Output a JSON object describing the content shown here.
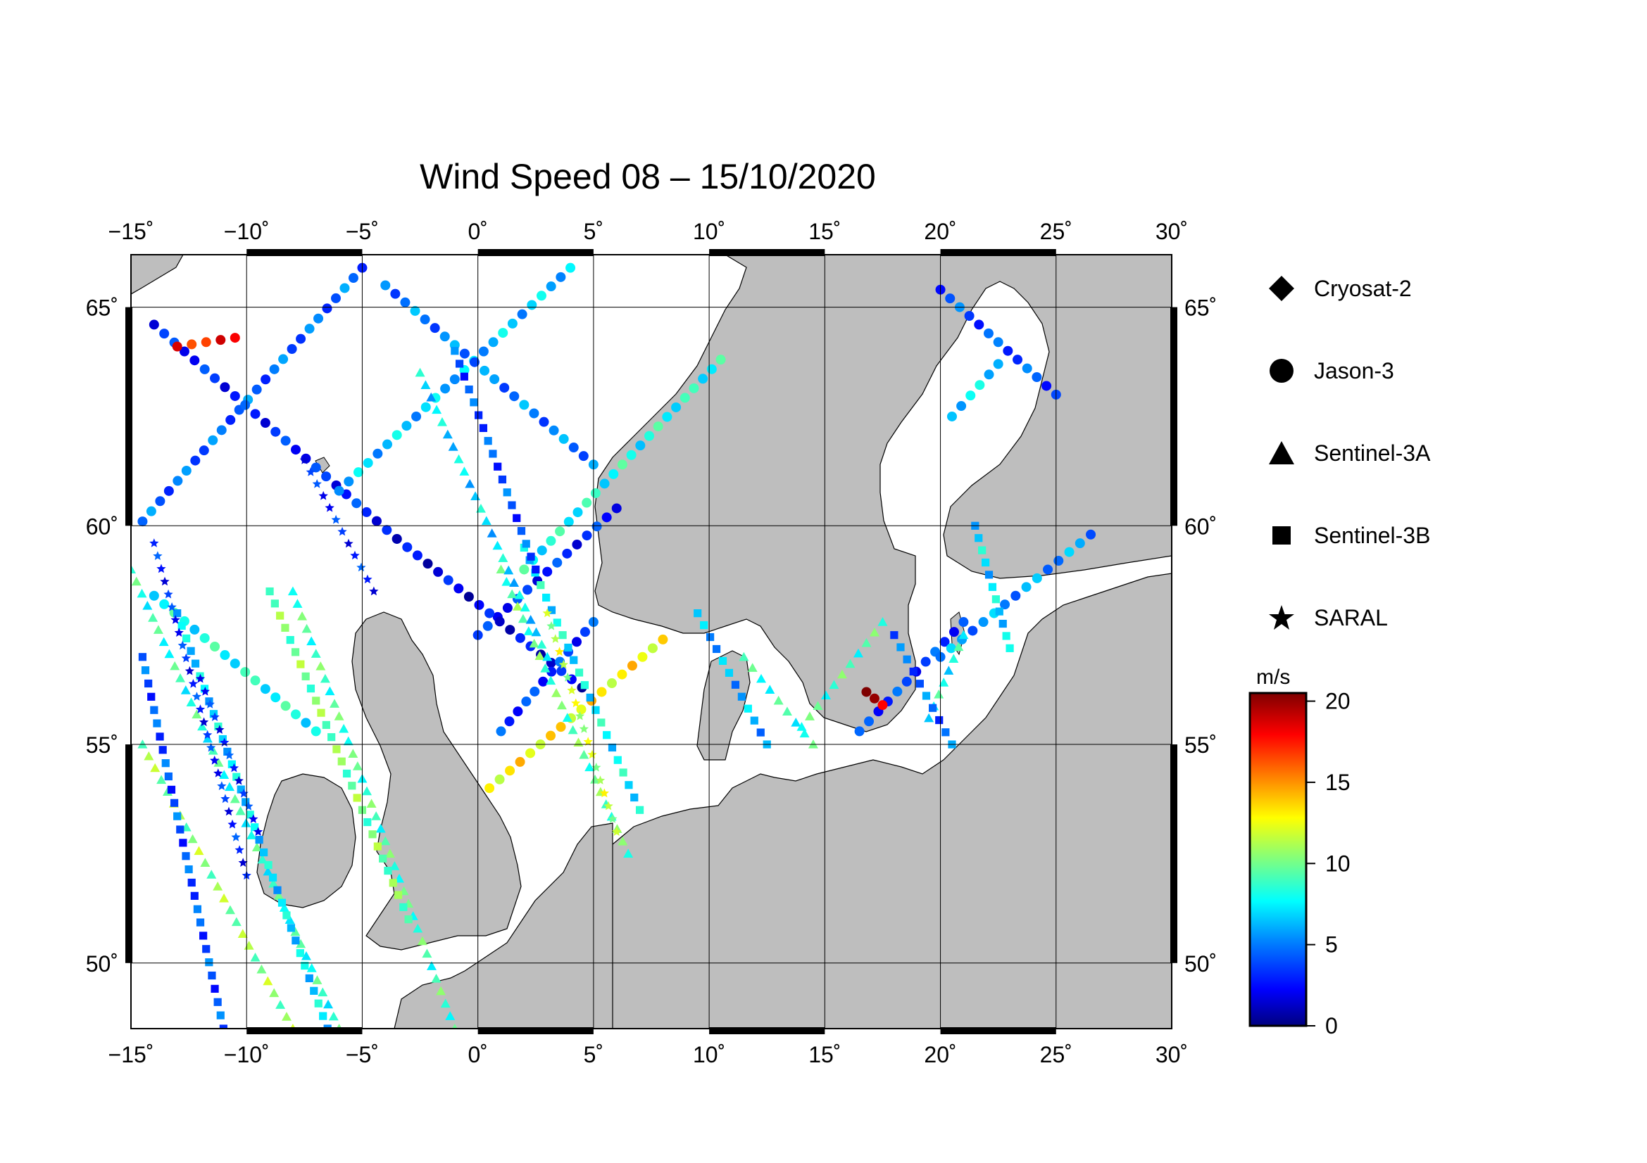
{
  "title": "Wind Speed 08 – 15/10/2020",
  "map": {
    "lon_range": [
      -15,
      30
    ],
    "lat_range": [
      48.5,
      66.2
    ],
    "lon_ticks": [
      "−15˚",
      "−10˚",
      "−5˚",
      "0˚",
      "5˚",
      "10˚",
      "15˚",
      "20˚",
      "25˚",
      "30˚"
    ],
    "lat_ticks_left": [
      "50˚",
      "55˚",
      "60˚",
      "65˚"
    ],
    "lat_ticks_right": [
      "50˚",
      "55˚",
      "60˚",
      "65˚"
    ],
    "land_color": "#bebebe",
    "sea_color": "#ffffff"
  },
  "legend": {
    "items": [
      {
        "label": "Cryosat-2",
        "symbol": "diamond-icon"
      },
      {
        "label": "Jason-3",
        "symbol": "circle-icon"
      },
      {
        "label": "Sentinel-3A",
        "symbol": "triangle-icon"
      },
      {
        "label": "Sentinel-3B",
        "symbol": "square-icon"
      },
      {
        "label": "SARAL",
        "symbol": "star-icon"
      }
    ]
  },
  "colorbar": {
    "unit": "m/s",
    "ticks": [
      "0",
      "5",
      "10",
      "15",
      "20"
    ],
    "range": [
      0,
      20.5
    ],
    "colors": [
      "#00007f",
      "#0000ff",
      "#007fff",
      "#00ffff",
      "#7fff7f",
      "#ffff00",
      "#ff7f00",
      "#ff0000",
      "#7f0000"
    ]
  },
  "chart_data": {
    "type": "scatter",
    "title": "Wind Speed 08 – 15/10/2020",
    "xlabel": "",
    "ylabel": "",
    "xlim": [
      -15,
      30
    ],
    "ylim": [
      48.5,
      66.2
    ],
    "series": [
      {
        "name": "Jason-3",
        "tracks": [
          {
            "start": [
              -14.5,
              60.1
            ],
            "end": [
              -5.0,
              65.9
            ],
            "speed": 4.5
          },
          {
            "start": [
              -14.0,
              64.6
            ],
            "end": [
              -3.5,
              59.7
            ],
            "speed": 3.0
          },
          {
            "start": [
              -6.0,
              60.8
            ],
            "end": [
              4.0,
              65.9
            ],
            "speed": 6.5
          },
          {
            "start": [
              -4.0,
              65.5
            ],
            "end": [
              5.0,
              61.4
            ],
            "speed": 5.0
          },
          {
            "start": [
              2.0,
              59.0
            ],
            "end": [
              10.5,
              63.8
            ],
            "speed": 8.0
          },
          {
            "start": [
              0.0,
              57.5
            ],
            "end": [
              6.0,
              60.4
            ],
            "speed": 3.0
          },
          {
            "start": [
              -3.5,
              59.7
            ],
            "end": [
              4.5,
              56.3
            ],
            "speed": 2.0
          },
          {
            "start": [
              -14.0,
              58.4
            ],
            "end": [
              -7.0,
              55.3
            ],
            "speed": 8.0
          },
          {
            "start": [
              0.5,
              54.0
            ],
            "end": [
              8.0,
              57.4
            ],
            "speed": 13.0
          },
          {
            "start": [
              1.0,
              55.3
            ],
            "end": [
              5.0,
              57.8
            ],
            "speed": 3.5
          },
          {
            "start": [
              16.5,
              55.3
            ],
            "end": [
              21.0,
              57.8
            ],
            "speed": 3.5
          },
          {
            "start": [
              20.0,
              57.0
            ],
            "end": [
              26.5,
              59.8
            ],
            "speed": 5.5
          },
          {
            "start": [
              20.0,
              65.4
            ],
            "end": [
              25.0,
              63.0
            ],
            "speed": 4.0
          },
          {
            "start": [
              20.5,
              62.5
            ],
            "end": [
              22.5,
              63.7
            ],
            "speed": 7.0
          },
          {
            "start": [
              -13.0,
              64.1
            ],
            "end": [
              -10.5,
              64.3
            ],
            "speed": 17.5
          },
          {
            "start": [
              16.8,
              56.2
            ],
            "end": [
              17.5,
              55.9
            ],
            "speed": 19.5
          }
        ]
      },
      {
        "name": "Sentinel-3A",
        "tracks": [
          {
            "start": [
              -15.0,
              59.0
            ],
            "end": [
              -6.0,
              48.5
            ],
            "speed": 8.5
          },
          {
            "start": [
              -14.5,
              55.0
            ],
            "end": [
              -8.0,
              48.5
            ],
            "speed": 10.5
          },
          {
            "start": [
              -8.0,
              58.5
            ],
            "end": [
              -1.0,
              48.5
            ],
            "speed": 9.0
          },
          {
            "start": [
              1.0,
              59.0
            ],
            "end": [
              6.5,
              52.5
            ],
            "speed": 9.5
          },
          {
            "start": [
              -2.5,
              63.5
            ],
            "end": [
              3.0,
              57.0
            ],
            "speed": 7.0
          },
          {
            "start": [
              11.5,
              57.0
            ],
            "end": [
              14.5,
              55.0
            ],
            "speed": 8.5
          },
          {
            "start": [
              14.0,
              55.4
            ],
            "end": [
              17.5,
              57.8
            ],
            "speed": 9.0
          },
          {
            "start": [
              19.5,
              55.6
            ],
            "end": [
              21.0,
              57.5
            ],
            "speed": 8.0
          }
        ]
      },
      {
        "name": "Sentinel-3B",
        "tracks": [
          {
            "start": [
              -14.5,
              57.0
            ],
            "end": [
              -11.0,
              48.5
            ],
            "speed": 4.0
          },
          {
            "start": [
              -13.0,
              58.0
            ],
            "end": [
              -6.5,
              48.5
            ],
            "speed": 7.0
          },
          {
            "start": [
              -9.0,
              58.5
            ],
            "end": [
              -3.0,
              51.0
            ],
            "speed": 10.0
          },
          {
            "start": [
              2.0,
              59.5
            ],
            "end": [
              7.0,
              53.5
            ],
            "speed": 7.5
          },
          {
            "start": [
              -1.0,
              64.0
            ],
            "end": [
              2.5,
              59.0
            ],
            "speed": 4.0
          },
          {
            "start": [
              9.5,
              58.0
            ],
            "end": [
              12.5,
              55.0
            ],
            "speed": 6.0
          },
          {
            "start": [
              18.0,
              57.5
            ],
            "end": [
              20.5,
              55.0
            ],
            "speed": 4.5
          },
          {
            "start": [
              21.5,
              60.0
            ],
            "end": [
              23.0,
              57.2
            ],
            "speed": 7.0
          }
        ]
      },
      {
        "name": "SARAL",
        "tracks": [
          {
            "start": [
              -14.0,
              59.6
            ],
            "end": [
              -10.0,
              52.0
            ],
            "speed": 3.0
          },
          {
            "start": [
              -7.5,
              61.5
            ],
            "end": [
              -4.5,
              58.5
            ],
            "speed": 3.0
          },
          {
            "start": [
              -12.0,
              56.5
            ],
            "end": [
              -9.5,
              53.0
            ],
            "speed": 3.0
          },
          {
            "start": [
              3.0,
              58.0
            ],
            "end": [
              6.0,
              53.0
            ],
            "speed": 11.5
          }
        ]
      }
    ]
  }
}
